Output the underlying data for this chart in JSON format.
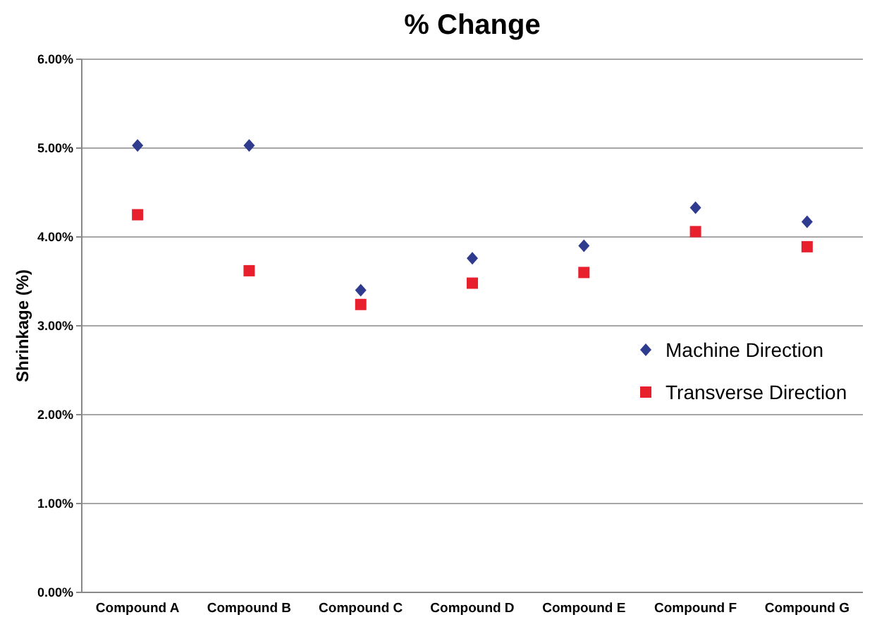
{
  "chart_data": {
    "type": "scatter",
    "title": "% Change",
    "ylabel": "Shrinkage (%)",
    "categories": [
      "Compound A",
      "Compound B",
      "Compound C",
      "Compound D",
      "Compound E",
      "Compound F",
      "Compound G"
    ],
    "series": [
      {
        "name": "Machine Direction",
        "color": "#2e3b8f",
        "marker": "diamond",
        "values": [
          5.03,
          5.03,
          3.4,
          3.76,
          3.9,
          4.33,
          4.17
        ]
      },
      {
        "name": "Transverse Direction",
        "color": "#e8202e",
        "marker": "square",
        "values": [
          4.25,
          3.62,
          3.24,
          3.48,
          3.6,
          4.06,
          3.89
        ]
      }
    ],
    "ylim": [
      0,
      6
    ],
    "yticks": [
      {
        "value": 0,
        "label": "0.00%"
      },
      {
        "value": 1,
        "label": "1.00%"
      },
      {
        "value": 2,
        "label": "2.00%"
      },
      {
        "value": 3,
        "label": "3.00%"
      },
      {
        "value": 4,
        "label": "4.00%"
      },
      {
        "value": 5,
        "label": "5.00%"
      },
      {
        "value": 6,
        "label": "6.00%"
      }
    ],
    "grid": "y",
    "legend": "right"
  }
}
